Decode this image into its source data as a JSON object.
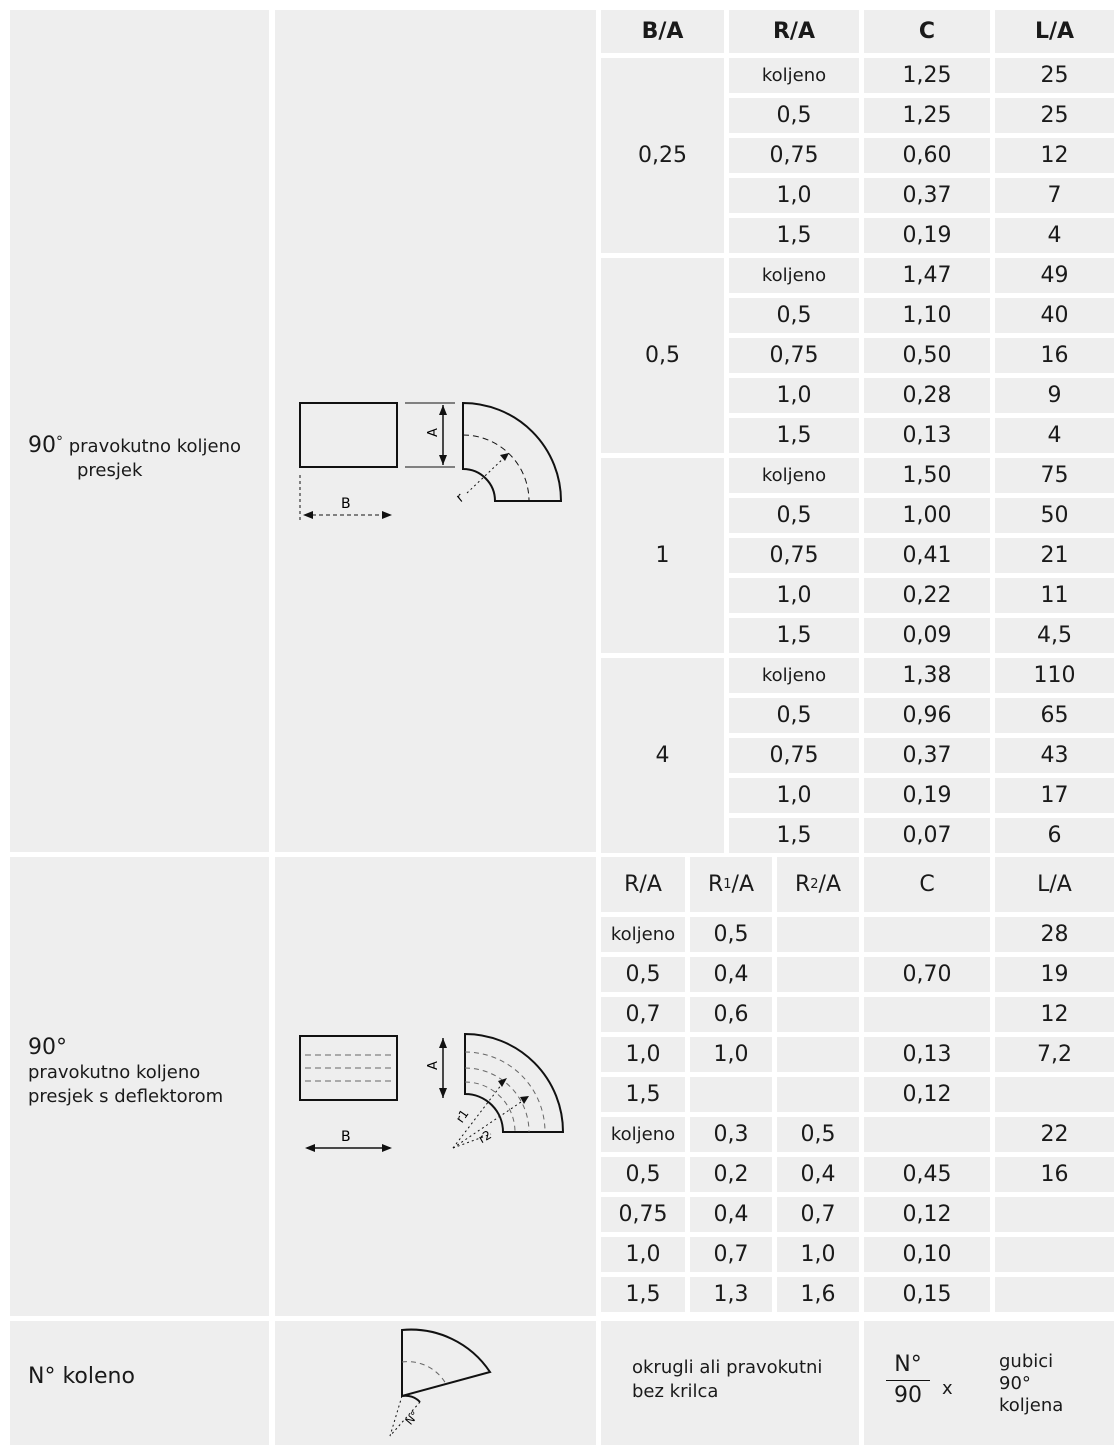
{
  "section1": {
    "label_deg": "90",
    "label_deg_sym": "°",
    "label_line1": "pravokutno koljeno",
    "label_line2": "presjek",
    "diagram": {
      "dim_a": "A",
      "dim_b": "B",
      "dim_r": "r"
    },
    "headers": [
      "B/A",
      "R/A",
      "C",
      "L/A"
    ],
    "groups": [
      {
        "ba": "0,25",
        "rows": [
          {
            "ra": "koljeno",
            "c": "1,25",
            "la": "25"
          },
          {
            "ra": "0,5",
            "c": "1,25",
            "la": "25"
          },
          {
            "ra": "0,75",
            "c": "0,60",
            "la": "12"
          },
          {
            "ra": "1,0",
            "c": "0,37",
            "la": "7"
          },
          {
            "ra": "1,5",
            "c": "0,19",
            "la": "4"
          }
        ]
      },
      {
        "ba": "0,5",
        "rows": [
          {
            "ra": "koljeno",
            "c": "1,47",
            "la": "49"
          },
          {
            "ra": "0,5",
            "c": "1,10",
            "la": "40"
          },
          {
            "ra": "0,75",
            "c": "0,50",
            "la": "16"
          },
          {
            "ra": "1,0",
            "c": "0,28",
            "la": "9"
          },
          {
            "ra": "1,5",
            "c": "0,13",
            "la": "4"
          }
        ]
      },
      {
        "ba": "1",
        "rows": [
          {
            "ra": "koljeno",
            "c": "1,50",
            "la": "75"
          },
          {
            "ra": "0,5",
            "c": "1,00",
            "la": "50"
          },
          {
            "ra": "0,75",
            "c": "0,41",
            "la": "21"
          },
          {
            "ra": "1,0",
            "c": "0,22",
            "la": "11"
          },
          {
            "ra": "1,5",
            "c": "0,09",
            "la": "4,5"
          }
        ]
      },
      {
        "ba": "4",
        "rows": [
          {
            "ra": "koljeno",
            "c": "1,38",
            "la": "110"
          },
          {
            "ra": "0,5",
            "c": "0,96",
            "la": "65"
          },
          {
            "ra": "0,75",
            "c": "0,37",
            "la": "43"
          },
          {
            "ra": "1,0",
            "c": "0,19",
            "la": "17"
          },
          {
            "ra": "1,5",
            "c": "0,07",
            "la": "6"
          }
        ]
      }
    ]
  },
  "section2": {
    "label_line1": "90°",
    "label_line2": "pravokutno koljeno",
    "label_line3": "presjek s deflektorom",
    "diagram": {
      "dim_a": "A",
      "dim_b": "B",
      "dim_r1": "r1",
      "dim_r2": "r2"
    },
    "headers": {
      "ra": "R/A",
      "r1_main": "R",
      "r1_sub": "1",
      "r1_tail": "/A",
      "r2_main": "R",
      "r2_sub": "2",
      "r2_tail": "/A",
      "c": "C",
      "la": "L/A"
    },
    "rows": [
      {
        "ra": "koljeno",
        "r1": "0,5",
        "r2": "",
        "c": "",
        "la": "28"
      },
      {
        "ra": "0,5",
        "r1": "0,4",
        "r2": "",
        "c": "0,70",
        "la": "19"
      },
      {
        "ra": "0,7",
        "r1": "0,6",
        "r2": "",
        "c": "",
        "la": "12"
      },
      {
        "ra": "1,0",
        "r1": "1,0",
        "r2": "",
        "c": "0,13",
        "la": "7,2"
      },
      {
        "ra": "1,5",
        "r1": "",
        "r2": "",
        "c": "0,12",
        "la": ""
      },
      {
        "ra": "koljeno",
        "r1": "0,3",
        "r2": "0,5",
        "c": "",
        "la": "22"
      },
      {
        "ra": "0,5",
        "r1": "0,2",
        "r2": "0,4",
        "c": "0,45",
        "la": "16"
      },
      {
        "ra": "0,75",
        "r1": "0,4",
        "r2": "0,7",
        "c": "0,12",
        "la": ""
      },
      {
        "ra": "1,0",
        "r1": "0,7",
        "r2": "1,0",
        "c": "0,10",
        "la": ""
      },
      {
        "ra": "1,5",
        "r1": "1,3",
        "r2": "1,6",
        "c": "0,15",
        "la": ""
      }
    ]
  },
  "section3": {
    "label": "N° koleno",
    "diagram": {
      "angle": "N°"
    },
    "desc_line1": "okrugli ali pravokutni",
    "desc_line2": "bez krilca",
    "fraction_num": "N°",
    "fraction_den": "90",
    "times": "x",
    "loss_line1": "gubici",
    "loss_line2": "90°",
    "loss_line3": "koljena"
  }
}
